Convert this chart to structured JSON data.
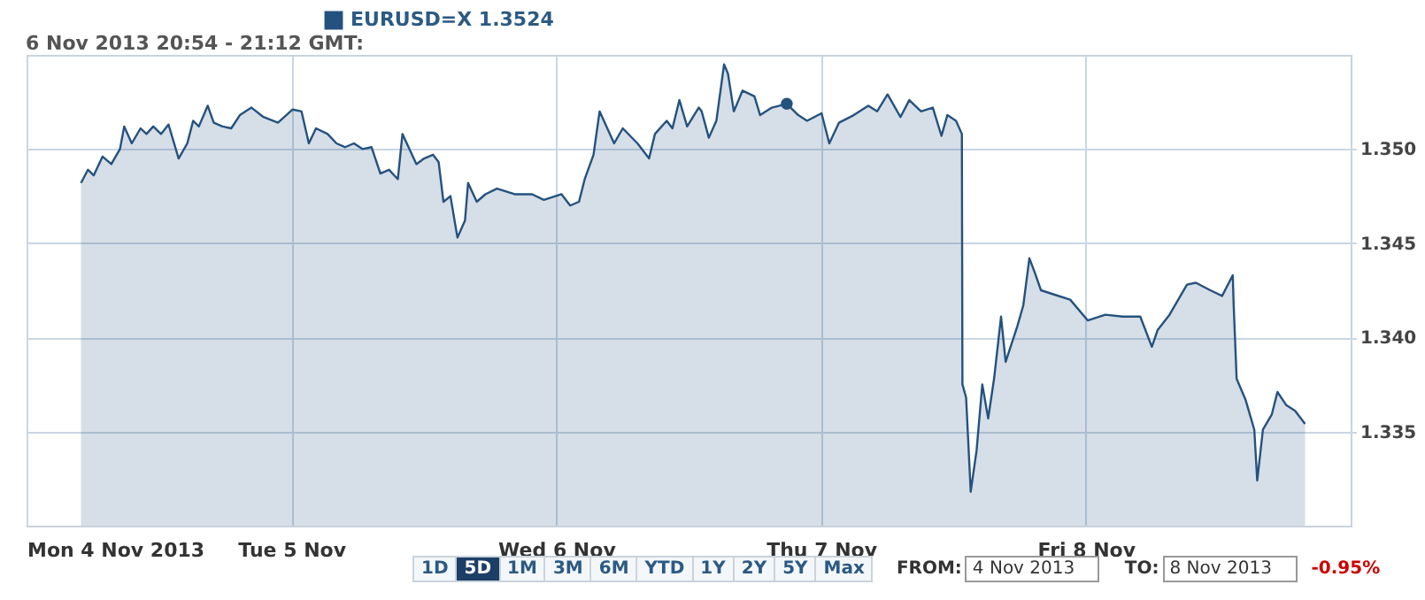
{
  "chart_data": {
    "type": "area",
    "title": "6 Nov 2013 20:54 - 21:12 GMT:",
    "xlim": [
      "2013-11-04T00:00",
      "2013-11-09T00:00"
    ],
    "xticks": [
      {
        "value": "2013-11-04",
        "label": "Mon 4 Nov 2013"
      },
      {
        "value": "2013-11-05",
        "label": "Tue 5 Nov"
      },
      {
        "value": "2013-11-06",
        "label": "Wed 6 Nov"
      },
      {
        "value": "2013-11-07",
        "label": "Thu 7 Nov"
      },
      {
        "value": "2013-11-08",
        "label": "Fri 8 Nov"
      }
    ],
    "ylim": [
      1.33,
      1.355
    ],
    "yticks": [
      {
        "value": 1.335,
        "label": "1.335"
      },
      {
        "value": 1.34,
        "label": "1.340"
      },
      {
        "value": 1.345,
        "label": "1.345"
      },
      {
        "value": 1.35,
        "label": "1.350"
      }
    ],
    "grid": true,
    "legend": "top left",
    "series": [
      {
        "name": "EURUSD=X 1.3524",
        "color": "#24527f",
        "x": [
          "2013-11-04T04:56",
          "2013-11-04T05:34",
          "2013-11-04T06:05",
          "2013-11-04T06:53",
          "2013-11-04T07:41",
          "2013-11-04T08:28",
          "2013-11-04T08:51",
          "2013-11-04T09:32",
          "2013-11-04T10:20",
          "2013-11-04T10:52",
          "2013-11-04T11:29",
          "2013-11-04T12:11",
          "2013-11-04T12:52",
          "2013-11-04T13:47",
          "2013-11-04T14:34",
          "2013-11-04T15:06",
          "2013-11-04T15:37",
          "2013-11-04T16:25",
          "2013-11-04T16:58",
          "2013-11-04T17:45",
          "2013-11-04T18:33",
          "2013-11-04T19:20",
          "2013-11-04T20:23",
          "2013-11-04T21:28",
          "2013-11-04T22:47",
          "2013-11-05T00:07",
          "2013-11-05T00:55",
          "2013-11-05T01:35",
          "2013-11-05T02:14",
          "2013-11-05T03:17",
          "2013-11-05T04:05",
          "2013-11-05T04:53",
          "2013-11-05T05:40",
          "2013-11-05T06:28",
          "2013-11-05T07:16",
          "2013-11-05T08:04",
          "2013-11-05T08:51",
          "2013-11-05T09:39",
          "2013-11-05T10:04",
          "2013-11-05T10:42",
          "2013-11-05T11:20",
          "2013-11-05T12:02",
          "2013-11-05T12:50",
          "2013-11-05T13:21",
          "2013-11-05T13:47",
          "2013-11-05T14:25",
          "2013-11-05T15:03",
          "2013-11-05T15:44",
          "2013-11-05T16:01",
          "2013-11-05T16:48",
          "2013-11-05T17:35",
          "2013-11-05T18:38",
          "2013-11-05T20:14",
          "2013-11-05T21:49",
          "2013-11-05T22:53",
          "2013-11-06T00:29",
          "2013-11-06T01:16",
          "2013-11-06T02:04",
          "2013-11-06T02:35",
          "2013-11-06T03:23",
          "2013-11-06T03:56",
          "2013-11-06T05:15",
          "2013-11-06T06:02",
          "2013-11-06T07:22",
          "2013-11-06T08:25",
          "2013-11-06T08:57",
          "2013-11-06T10:01",
          "2013-11-06T10:32",
          "2013-11-06T11:10",
          "2013-11-06T11:52",
          "2013-11-06T12:55",
          "2013-11-06T13:11",
          "2013-11-06T13:50",
          "2013-11-06T14:31",
          "2013-11-06T15:13",
          "2013-11-06T15:34",
          "2013-11-06T16:06",
          "2013-11-06T16:53",
          "2013-11-06T17:58",
          "2013-11-06T18:29",
          "2013-11-06T19:33",
          "2013-11-06T20:54",
          "2013-11-06T21:56",
          "2013-11-06T22:44",
          "2013-11-07T00:03",
          "2013-11-07T00:45",
          "2013-11-07T01:38",
          "2013-11-07T02:58",
          "2013-11-07T04:17",
          "2013-11-07T05:05",
          "2013-11-07T06:02",
          "2013-11-07T07:12",
          "2013-11-07T08:00",
          "2013-11-07T09:04",
          "2013-11-07T10:08",
          "2013-11-07T10:55",
          "2013-11-07T11:27",
          "2013-11-07T12:14",
          "2013-11-07T12:46",
          "2013-11-07T12:49",
          "2013-11-07T13:09",
          "2013-11-07T13:34",
          "2013-11-07T14:06",
          "2013-11-07T14:37",
          "2013-11-07T15:09",
          "2013-11-07T15:41",
          "2013-11-07T16:19",
          "2013-11-07T16:44",
          "2013-11-07T17:48",
          "2013-11-07T18:20",
          "2013-11-07T18:53",
          "2013-11-07T19:24",
          "2013-11-07T19:56",
          "2013-11-07T20:59",
          "2013-11-07T22:35",
          "2013-11-08T00:10",
          "2013-11-08T01:46",
          "2013-11-08T03:21",
          "2013-11-08T04:56",
          "2013-11-08T05:59",
          "2013-11-08T06:31",
          "2013-11-08T07:35",
          "2013-11-08T09:10",
          "2013-11-08T09:58",
          "2013-11-08T11:17",
          "2013-11-08T12:21",
          "2013-11-08T13:19",
          "2013-11-08T13:24",
          "2013-11-08T13:40",
          "2013-11-08T14:28",
          "2013-11-08T15:16",
          "2013-11-08T15:32",
          "2013-11-08T16:03",
          "2013-11-08T16:51",
          "2013-11-08T17:22",
          "2013-11-08T18:10",
          "2013-11-08T18:58",
          "2013-11-08T19:52"
        ],
        "values": [
          1.3482,
          1.3489,
          1.3486,
          1.3496,
          1.3492,
          1.35,
          1.3512,
          1.3503,
          1.3511,
          1.3508,
          1.3512,
          1.3508,
          1.3513,
          1.3495,
          1.3503,
          1.3515,
          1.3512,
          1.3523,
          1.3514,
          1.3512,
          1.3511,
          1.3518,
          1.3522,
          1.3517,
          1.3514,
          1.3521,
          1.352,
          1.3503,
          1.3511,
          1.3508,
          1.3503,
          1.3501,
          1.3503,
          1.35,
          1.3501,
          1.3487,
          1.3489,
          1.3484,
          1.3508,
          1.35,
          1.3492,
          1.3495,
          1.3497,
          1.3493,
          1.3472,
          1.3475,
          1.3453,
          1.3462,
          1.3482,
          1.3472,
          1.3476,
          1.3479,
          1.3476,
          1.3476,
          1.3473,
          1.3476,
          1.347,
          1.3472,
          1.3484,
          1.3497,
          1.352,
          1.3503,
          1.3511,
          1.3503,
          1.3495,
          1.3508,
          1.3515,
          1.3511,
          1.3526,
          1.3512,
          1.3522,
          1.352,
          1.3506,
          1.3515,
          1.3545,
          1.354,
          1.352,
          1.3531,
          1.3528,
          1.3518,
          1.3522,
          1.3524,
          1.3518,
          1.3515,
          1.3519,
          1.3503,
          1.3514,
          1.3518,
          1.3523,
          1.352,
          1.3529,
          1.3517,
          1.3526,
          1.352,
          1.3522,
          1.3507,
          1.3518,
          1.3515,
          1.3508,
          1.3375,
          1.3368,
          1.3318,
          1.334,
          1.3375,
          1.3357,
          1.3378,
          1.3411,
          1.3387,
          1.3406,
          1.3417,
          1.3442,
          1.3434,
          1.3425,
          1.3423,
          1.342,
          1.3409,
          1.3412,
          1.3411,
          1.3411,
          1.3395,
          1.3404,
          1.3412,
          1.3428,
          1.3429,
          1.3425,
          1.3422,
          1.3433,
          1.3417,
          1.3378,
          1.3367,
          1.3351,
          1.3324,
          1.3351,
          1.3359,
          1.3371,
          1.3364,
          1.3361,
          1.3354
        ]
      },
      {
        "type": "scatter",
        "color": "#24527f",
        "x": [
          "2013-11-06T20:54"
        ],
        "values": [
          1.3524
        ]
      }
    ],
    "annotations": [
      "1D",
      "5D",
      "1M",
      "3M",
      "6M",
      "YTD",
      "1Y",
      "2Y",
      "5Y",
      "Max",
      "FROM:",
      "4 Nov 2013",
      "TO:",
      "8 Nov 2013",
      "-0.95%"
    ]
  }
}
